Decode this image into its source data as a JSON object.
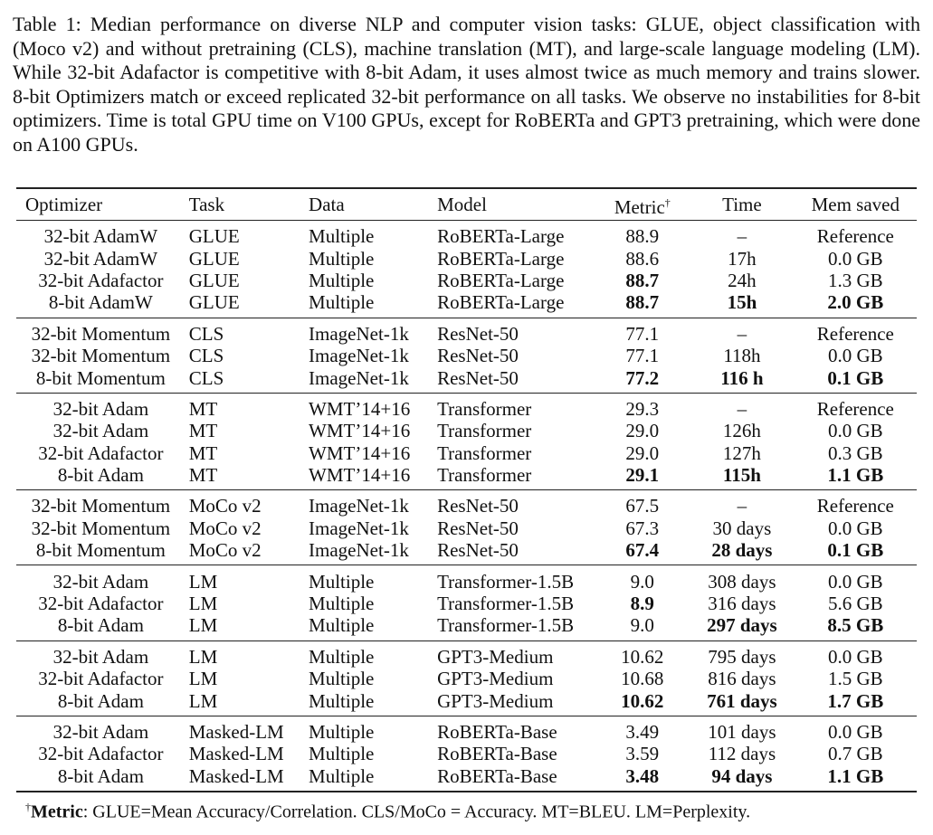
{
  "caption": "Table 1: Median performance on diverse NLP and computer vision tasks: GLUE, object classification with (Moco v2) and without pretraining (CLS), machine translation (MT), and large-scale language modeling (LM). While 32-bit Adafactor is competitive with 8-bit Adam, it uses almost twice as much memory and trains slower. 8-bit Optimizers match or exceed replicated 32-bit performance on all tasks. We observe no instabilities for 8-bit optimizers. Time is total GPU time on V100 GPUs, except for RoBERTa and GPT3 pretraining, which were done on A100 GPUs.",
  "table": {
    "headers": [
      "Optimizer",
      "Task",
      "Data",
      "Model",
      "Metric",
      "Time",
      "Mem saved"
    ],
    "metric_marker": "†",
    "groups": [
      [
        {
          "cells": [
            "32-bit AdamW",
            "GLUE",
            "Multiple",
            "RoBERTa-Large",
            "88.9",
            "–",
            "Reference"
          ],
          "bold": []
        },
        {
          "cells": [
            "32-bit AdamW",
            "GLUE",
            "Multiple",
            "RoBERTa-Large",
            "88.6",
            "17h",
            "0.0 GB"
          ],
          "bold": []
        },
        {
          "cells": [
            "32-bit Adafactor",
            "GLUE",
            "Multiple",
            "RoBERTa-Large",
            "88.7",
            "24h",
            "1.3 GB"
          ],
          "bold": [
            4
          ]
        },
        {
          "cells": [
            "8-bit AdamW",
            "GLUE",
            "Multiple",
            "RoBERTa-Large",
            "88.7",
            "15h",
            "2.0 GB"
          ],
          "bold": [
            4,
            5,
            6
          ]
        }
      ],
      [
        {
          "cells": [
            "32-bit Momentum",
            "CLS",
            "ImageNet-1k",
            "ResNet-50",
            "77.1",
            "–",
            "Reference"
          ],
          "bold": []
        },
        {
          "cells": [
            "32-bit Momentum",
            "CLS",
            "ImageNet-1k",
            "ResNet-50",
            "77.1",
            "118h",
            "0.0 GB"
          ],
          "bold": []
        },
        {
          "cells": [
            "8-bit Momentum",
            "CLS",
            "ImageNet-1k",
            "ResNet-50",
            "77.2",
            "116 h",
            "0.1 GB"
          ],
          "bold": [
            4,
            5,
            6
          ]
        }
      ],
      [
        {
          "cells": [
            "32-bit Adam",
            "MT",
            "WMT’14+16",
            "Transformer",
            "29.3",
            "–",
            "Reference"
          ],
          "bold": []
        },
        {
          "cells": [
            "32-bit Adam",
            "MT",
            "WMT’14+16",
            "Transformer",
            "29.0",
            "126h",
            "0.0 GB"
          ],
          "bold": []
        },
        {
          "cells": [
            "32-bit Adafactor",
            "MT",
            "WMT’14+16",
            "Transformer",
            "29.0",
            "127h",
            "0.3 GB"
          ],
          "bold": []
        },
        {
          "cells": [
            "8-bit Adam",
            "MT",
            "WMT’14+16",
            "Transformer",
            "29.1",
            "115h",
            "1.1 GB"
          ],
          "bold": [
            4,
            5,
            6
          ]
        }
      ],
      [
        {
          "cells": [
            "32-bit Momentum",
            "MoCo v2",
            "ImageNet-1k",
            "ResNet-50",
            "67.5",
            "–",
            "Reference"
          ],
          "bold": []
        },
        {
          "cells": [
            "32-bit Momentum",
            "MoCo v2",
            "ImageNet-1k",
            "ResNet-50",
            "67.3",
            "30 days",
            "0.0 GB"
          ],
          "bold": []
        },
        {
          "cells": [
            "8-bit Momentum",
            "MoCo v2",
            "ImageNet-1k",
            "ResNet-50",
            "67.4",
            "28 days",
            "0.1 GB"
          ],
          "bold": [
            4,
            5,
            6
          ]
        }
      ],
      [
        {
          "cells": [
            "32-bit Adam",
            "LM",
            "Multiple",
            "Transformer-1.5B",
            "9.0",
            "308 days",
            "0.0 GB"
          ],
          "bold": []
        },
        {
          "cells": [
            "32-bit Adafactor",
            "LM",
            "Multiple",
            "Transformer-1.5B",
            "8.9",
            "316 days",
            "5.6 GB"
          ],
          "bold": [
            4
          ]
        },
        {
          "cells": [
            "8-bit Adam",
            "LM",
            "Multiple",
            "Transformer-1.5B",
            "9.0",
            "297 days",
            "8.5 GB"
          ],
          "bold": [
            5,
            6
          ]
        }
      ],
      [
        {
          "cells": [
            "32-bit Adam",
            "LM",
            "Multiple",
            "GPT3-Medium",
            "10.62",
            "795 days",
            "0.0 GB"
          ],
          "bold": []
        },
        {
          "cells": [
            "32-bit Adafactor",
            "LM",
            "Multiple",
            "GPT3-Medium",
            "10.68",
            "816 days",
            "1.5 GB"
          ],
          "bold": []
        },
        {
          "cells": [
            "8-bit Adam",
            "LM",
            "Multiple",
            "GPT3-Medium",
            "10.62",
            "761 days",
            "1.7 GB"
          ],
          "bold": [
            4,
            5,
            6
          ]
        }
      ],
      [
        {
          "cells": [
            "32-bit Adam",
            "Masked-LM",
            "Multiple",
            "RoBERTa-Base",
            "3.49",
            "101 days",
            "0.0 GB"
          ],
          "bold": []
        },
        {
          "cells": [
            "32-bit Adafactor",
            "Masked-LM",
            "Multiple",
            "RoBERTa-Base",
            "3.59",
            "112 days",
            "0.7 GB"
          ],
          "bold": []
        },
        {
          "cells": [
            "8-bit Adam",
            "Masked-LM",
            "Multiple",
            "RoBERTa-Base",
            "3.48",
            "94 days",
            "1.1 GB"
          ],
          "bold": [
            4,
            5,
            6
          ]
        }
      ]
    ]
  },
  "footnote": {
    "marker": "†",
    "label": "Metric",
    "text": ": GLUE=Mean Accuracy/Correlation. CLS/MoCo = Accuracy. MT=BLEU. LM=Perplexity."
  }
}
